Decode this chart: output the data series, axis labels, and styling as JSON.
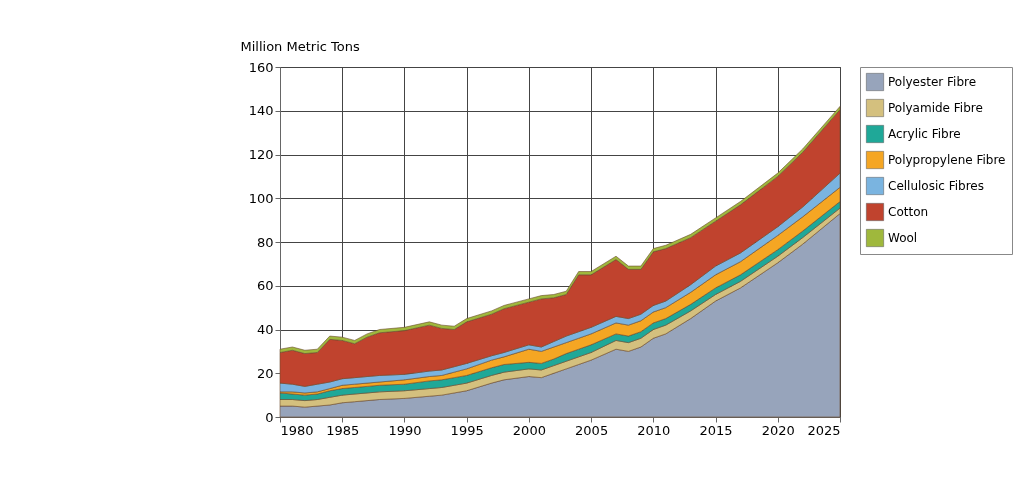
{
  "chart_data": {
    "type": "area",
    "stacked": true,
    "ylabel": "Million Metric Tons",
    "x": [
      1980,
      1981,
      1982,
      1983,
      1984,
      1985,
      1986,
      1987,
      1988,
      1990,
      1992,
      1993,
      1994,
      1995,
      1997,
      1998,
      2000,
      2001,
      2002,
      2003,
      2004,
      2005,
      2007,
      2008,
      2009,
      2010,
      2011,
      2013,
      2015,
      2017,
      2020,
      2022,
      2025
    ],
    "series": [
      {
        "name": "Polyester Fibre",
        "color": "#97a4bb",
        "values": [
          5,
          5,
          4.5,
          5,
          5.5,
          6.5,
          7,
          7.5,
          8,
          8.5,
          9.5,
          10,
          11,
          12,
          15.5,
          17,
          18.5,
          18,
          20,
          22,
          24,
          26,
          31,
          30,
          32,
          36,
          38,
          45,
          53,
          59,
          70.5,
          79,
          93
        ]
      },
      {
        "name": "Polyamide Fibre",
        "color": "#d4c07e",
        "values": [
          3,
          3,
          3,
          3,
          3.5,
          3.5,
          3.5,
          3.5,
          3.5,
          3.5,
          3.5,
          3.5,
          3.5,
          3.5,
          3.5,
          3.5,
          3.5,
          3.5,
          3.5,
          3.5,
          3.5,
          3.5,
          4,
          4,
          4,
          4,
          4,
          3.5,
          3,
          3,
          3,
          3,
          2.5
        ]
      },
      {
        "name": "Acrylic Fibre",
        "color": "#1fa898",
        "values": [
          3,
          2.5,
          2.5,
          2.5,
          3,
          3,
          3,
          3,
          3,
          3,
          3.5,
          3.5,
          3.5,
          3.5,
          3.5,
          3.5,
          3,
          3,
          3,
          3.5,
          3.5,
          3.5,
          3,
          3,
          3,
          3,
          3,
          3,
          3,
          3,
          3,
          3,
          3
        ]
      },
      {
        "name": "Polypropylene Fibre",
        "color": "#f5a623",
        "values": [
          0.5,
          1,
          1,
          1,
          1,
          1.5,
          1.5,
          1.5,
          1.5,
          2,
          2,
          2,
          2.5,
          3,
          3.5,
          3.5,
          6,
          5.5,
          5.5,
          5,
          5,
          5,
          5,
          5,
          5,
          5,
          5,
          5.5,
          6,
          6,
          6.5,
          6.5,
          6.5
        ]
      },
      {
        "name": "Cellulosic Fibres",
        "color": "#7ab4e0",
        "values": [
          4,
          3.5,
          3,
          3.5,
          3,
          3,
          3,
          3,
          3,
          2.5,
          2.5,
          2.5,
          2.5,
          2.5,
          2,
          2,
          2,
          2,
          2.5,
          3,
          3,
          3,
          3,
          3,
          3,
          3,
          3,
          3.5,
          4,
          4,
          4,
          4.5,
          6.5
        ]
      },
      {
        "name": "Cotton",
        "color": "#c0432e",
        "values": [
          14,
          15.5,
          15,
          14.5,
          19.5,
          17.5,
          15.5,
          18,
          19.5,
          20,
          21,
          19,
          17,
          19,
          19,
          20,
          19.5,
          22,
          20,
          19,
          26,
          24,
          26,
          22.5,
          20.5,
          24.5,
          24,
          21.5,
          20.5,
          22,
          23,
          25,
          29
        ]
      },
      {
        "name": "Wool",
        "color": "#9fb83c",
        "values": [
          1.5,
          1.5,
          1.5,
          1.5,
          1.5,
          1.5,
          1.5,
          1.5,
          1.5,
          1.5,
          1.5,
          1.5,
          1.5,
          1.5,
          1.5,
          1.5,
          1.5,
          1.5,
          1.5,
          1.5,
          1.5,
          1.5,
          1.5,
          1.5,
          1.5,
          1.5,
          1.5,
          1.5,
          1.5,
          1.5,
          1.5,
          1.5,
          1.5
        ]
      }
    ],
    "xlim": [
      1980,
      2025
    ],
    "xticks": [
      1980,
      1985,
      1990,
      1995,
      2000,
      2005,
      2010,
      2015,
      2020,
      2025
    ],
    "ylim": [
      0,
      160
    ],
    "yticks": [
      0,
      20,
      40,
      60,
      80,
      100,
      120,
      140,
      160
    ],
    "grid": true,
    "legend": "top right"
  }
}
